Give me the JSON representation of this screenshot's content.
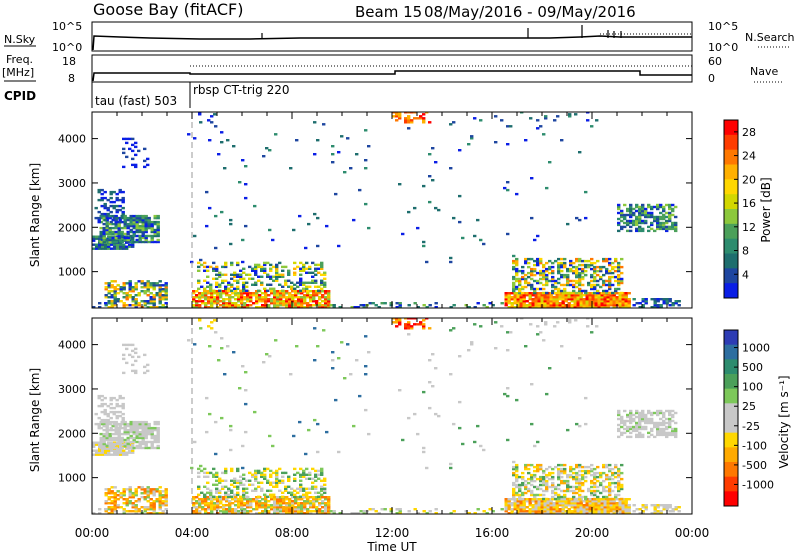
{
  "header": {
    "title": "Goose Bay (fitACF)",
    "beam": "Beam 15",
    "date_range": "08/May/2016 - 09/May/2016"
  },
  "small_panels": {
    "nsky_label": "N.Sky",
    "nsky_ticks": [
      "10^5",
      "10^0"
    ],
    "nsearch_label": "N.Search",
    "nsearch_ticks": [
      "10^5",
      "10^0"
    ],
    "freq_label_top": "Freq.",
    "freq_label_unit": "[MHz]",
    "freq_ticks": [
      "18",
      "8"
    ],
    "nave_label": "Nave",
    "nave_ticks": [
      "60",
      "0"
    ],
    "cpid_label": "CPID",
    "cpid_segments": [
      "tau (fast) 503",
      "rbsp CT-trig 220"
    ]
  },
  "colorbars": {
    "power": {
      "label": "Power [dB]",
      "ticks": [
        "28",
        "24",
        "20",
        "16",
        "12",
        "8",
        "4"
      ],
      "colors": [
        "#ff0000",
        "#ff3c00",
        "#ff7800",
        "#ffb000",
        "#ffd700",
        "#d2d700",
        "#8cc83c",
        "#4ba05a",
        "#2d8c6e",
        "#1e6e6e",
        "#1e46a0",
        "#0a1ee6"
      ]
    },
    "velocity": {
      "label": "Velocity [m s⁻¹]",
      "ticks": [
        "1000",
        "500",
        "100",
        "25",
        "-25",
        "-100",
        "-500",
        "-1000"
      ],
      "colors": [
        "#2d3cb4",
        "#2d6ea0",
        "#2d8c6e",
        "#4ba05a",
        "#7dc85a",
        "#c8c8c8",
        "#c8c8c8",
        "#ffd700",
        "#ffaa00",
        "#ff7800",
        "#ff3c00",
        "#ff0000"
      ]
    }
  },
  "axes": {
    "ylabel": "Slant Range [km]",
    "xlabel": "Time UT",
    "yticks": [
      "1000",
      "2000",
      "3000",
      "4000"
    ],
    "xticks": [
      "00:00",
      "04:00",
      "08:00",
      "12:00",
      "16:00",
      "20:00",
      "00:00"
    ]
  },
  "chart_data": [
    {
      "type": "heatmap",
      "title": "Power",
      "x_range_hours": [
        0,
        24
      ],
      "ylim": [
        180,
        4600
      ],
      "colorbar_range_db": [
        0,
        30
      ],
      "regions": [
        {
          "t": [
            0.0,
            2.8
          ],
          "r": [
            1500,
            2300
          ],
          "level": "mid-high"
        },
        {
          "t": [
            0.5,
            3.0
          ],
          "r": [
            180,
            800
          ],
          "level": "mixed"
        },
        {
          "t": [
            4.0,
            9.5
          ],
          "r": [
            180,
            1200
          ],
          "level": "high"
        },
        {
          "t": [
            16.5,
            21.5
          ],
          "r": [
            180,
            1300
          ],
          "level": "high"
        },
        {
          "t": [
            21.0,
            23.2
          ],
          "r": [
            1900,
            2500
          ],
          "level": "low"
        }
      ]
    },
    {
      "type": "heatmap",
      "title": "Velocity",
      "x_range_hours": [
        0,
        24
      ],
      "ylim": [
        180,
        4600
      ],
      "colorbar_range_ms": [
        -1000,
        1000
      ],
      "regions": [
        {
          "t": [
            0.0,
            2.8
          ],
          "r": [
            1500,
            2300
          ],
          "level": "ground scatter"
        },
        {
          "t": [
            4.0,
            9.5
          ],
          "r": [
            180,
            1000
          ],
          "level": "-100 to -25"
        },
        {
          "t": [
            16.5,
            21.5
          ],
          "r": [
            180,
            1200
          ],
          "level": "mixed"
        },
        {
          "t": [
            21.0,
            23.2
          ],
          "r": [
            1900,
            2500
          ],
          "level": "ground scatter"
        }
      ]
    }
  ]
}
